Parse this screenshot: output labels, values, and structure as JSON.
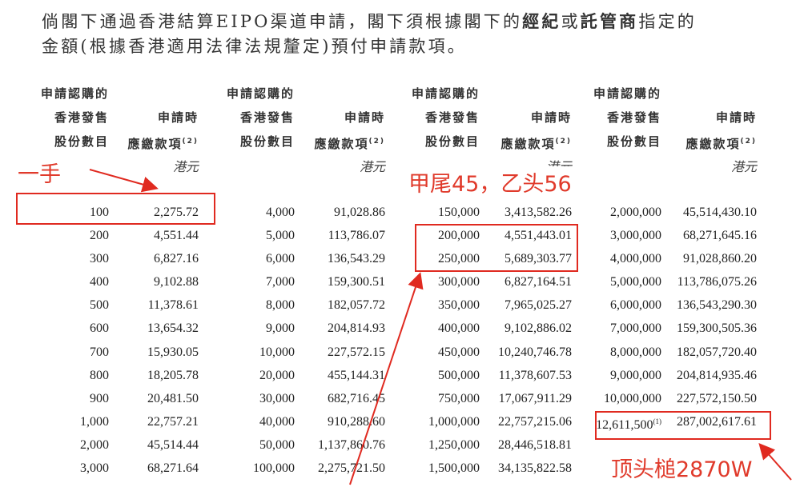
{
  "intro": {
    "line1_a": "倘閣下通過香港結算EIPO渠道申請，閣下須根據閣下的",
    "line1_b1": "經紀",
    "line1_or": "或",
    "line1_b2": "託管商",
    "line1_c": "指定的",
    "line2": "金額(根據香港適用法律法規釐定)預付申請款項。"
  },
  "headers": {
    "shares": [
      "申請認購的",
      "香港發售",
      "股份數目"
    ],
    "amount": [
      "申請時",
      "應繳款項"
    ],
    "note": "(2)",
    "unit": "港元"
  },
  "columns": [
    {
      "shares": [
        "100",
        "200",
        "300",
        "400",
        "500",
        "600",
        "700",
        "800",
        "900",
        "1,000",
        "2,000",
        "3,000"
      ],
      "amounts": [
        "2,275.72",
        "4,551.44",
        "6,827.16",
        "9,102.88",
        "11,378.61",
        "13,654.32",
        "15,930.05",
        "18,205.78",
        "20,481.50",
        "22,757.21",
        "45,514.44",
        "68,271.64"
      ]
    },
    {
      "shares": [
        "4,000",
        "5,000",
        "6,000",
        "7,000",
        "8,000",
        "9,000",
        "10,000",
        "20,000",
        "30,000",
        "40,000",
        "50,000",
        "100,000"
      ],
      "amounts": [
        "91,028.86",
        "113,786.07",
        "136,543.29",
        "159,300.51",
        "182,057.72",
        "204,814.93",
        "227,572.15",
        "455,144.31",
        "682,716.45",
        "910,288.60",
        "1,137,860.76",
        "2,275,721.50"
      ]
    },
    {
      "shares": [
        "150,000",
        "200,000",
        "250,000",
        "300,000",
        "350,000",
        "400,000",
        "450,000",
        "500,000",
        "750,000",
        "1,000,000",
        "1,250,000",
        "1,500,000"
      ],
      "amounts": [
        "3,413,582.26",
        "4,551,443.01",
        "5,689,303.77",
        "6,827,164.51",
        "7,965,025.27",
        "9,102,886.02",
        "10,240,746.78",
        "11,378,607.53",
        "17,067,911.29",
        "22,757,215.06",
        "28,446,518.81",
        "34,135,822.58"
      ]
    },
    {
      "shares": [
        "2,000,000",
        "3,000,000",
        "4,000,000",
        "5,000,000",
        "6,000,000",
        "7,000,000",
        "8,000,000",
        "9,000,000",
        "10,000,000",
        "12,611,500"
      ],
      "amounts": [
        "45,514,430.10",
        "68,271,645.16",
        "91,028,860.20",
        "113,786,075.26",
        "136,543,290.30",
        "159,300,505.36",
        "182,057,720.40",
        "204,814,935.46",
        "227,572,150.50",
        "287,002,617.61"
      ],
      "last_note": "(1)"
    }
  ],
  "annotations": {
    "one_lot": "一手",
    "tail_head": "甲尾45，乙头56",
    "top_cap": "顶头槌2870W",
    "color": "#e03a2b"
  }
}
